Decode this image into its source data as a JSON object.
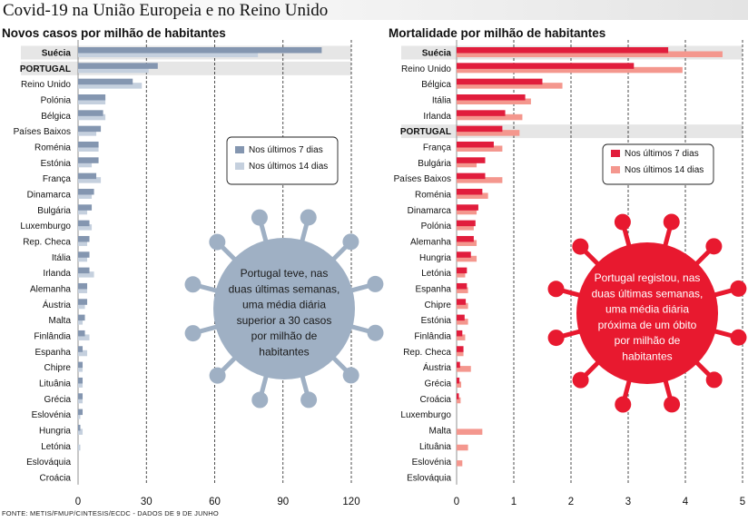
{
  "main_title": "Covid-19 na União Europeia e no Reino Unido",
  "source": "FONTE: METIS/FMUP/CINTESIS/ECDC - DADOS DE 9 DE JUNHO",
  "chart_data": [
    {
      "type": "bar",
      "orientation": "horizontal",
      "title": "Novos casos por milhão de habitantes",
      "categories": [
        "Suécia",
        "PORTUGAL",
        "Reino Unido",
        "Polónia",
        "Bélgica",
        "Países Baixos",
        "Roménia",
        "Estónia",
        "França",
        "Dinamarca",
        "Bulgária",
        "Luxemburgo",
        "Rep. Checa",
        "Itália",
        "Irlanda",
        "Alemanha",
        "Áustria",
        "Malta",
        "Finlândia",
        "Espanha",
        "Chipre",
        "Lituânia",
        "Grécia",
        "Eslovénia",
        "Hungria",
        "Letónia",
        "Eslováquia",
        "Croácia"
      ],
      "highlight": [
        "Suécia",
        "PORTUGAL"
      ],
      "series": [
        {
          "name": "Nos últimos 7 dias",
          "color": "#8496b0",
          "values": [
            107,
            35,
            24,
            12,
            11,
            10,
            9,
            9,
            8,
            7,
            6,
            5,
            5,
            5,
            5,
            4,
            4,
            3,
            3,
            2,
            2,
            2,
            2,
            2,
            1,
            0,
            0,
            0
          ]
        },
        {
          "name": "Nos últimos 14 dias",
          "color": "#c5d0de",
          "values": [
            79,
            31,
            28,
            12,
            12,
            8,
            9,
            6,
            10,
            6,
            4,
            6,
            4,
            4,
            7,
            4,
            3,
            2,
            5,
            4,
            2,
            2,
            2,
            1,
            2,
            1,
            0,
            0
          ]
        }
      ],
      "xlim": [
        0,
        120
      ],
      "xticks": [
        0,
        30,
        60,
        90,
        120
      ],
      "grid": true,
      "legend_position": "right",
      "annotation": [
        "Portugal teve, nas",
        "duas últimas semanas,",
        "uma média diária",
        "superior a 30 casos",
        "por milhão de",
        "habitantes"
      ],
      "annotation_shape_color": "#9fb0c4"
    },
    {
      "type": "bar",
      "orientation": "horizontal",
      "title": "Mortalidade por milhão de habitantes",
      "categories": [
        "Suécia",
        "Reino Unido",
        "Bélgica",
        "Itália",
        "Irlanda",
        "PORTUGAL",
        "França",
        "Bulgária",
        "Países Baixos",
        "Roménia",
        "Dinamarca",
        "Polónia",
        "Alemanha",
        "Hungria",
        "Letónia",
        "Espanha",
        "Chipre",
        "Estónia",
        "Finlândia",
        "Rep. Checa",
        "Áustria",
        "Grécia",
        "Croácia",
        "Luxemburgo",
        "Malta",
        "Lituânia",
        "Eslovénia",
        "Eslováquia"
      ],
      "highlight": [
        "Suécia",
        "PORTUGAL"
      ],
      "series": [
        {
          "name": "Nos últimos 7 dias",
          "color": "#e11d3c",
          "values": [
            3.7,
            3.1,
            1.5,
            1.2,
            0.85,
            0.8,
            0.65,
            0.5,
            0.5,
            0.45,
            0.38,
            0.33,
            0.3,
            0.25,
            0.18,
            0.18,
            0.16,
            0.14,
            0.1,
            0.12,
            0.06,
            0.05,
            0.04,
            0,
            0,
            0,
            0,
            0
          ]
        },
        {
          "name": "Nos últimos 14 dias",
          "color": "#f4978e",
          "values": [
            4.65,
            3.95,
            1.85,
            1.3,
            1.15,
            1.1,
            0.8,
            0.35,
            0.8,
            0.55,
            0.35,
            0.3,
            0.35,
            0.35,
            0.15,
            0.2,
            0.2,
            0.2,
            0.15,
            0.12,
            0.25,
            0.08,
            0.07,
            0,
            0.45,
            0.2,
            0.1,
            0
          ]
        }
      ],
      "xlim": [
        0,
        5
      ],
      "xticks": [
        0,
        1,
        2,
        3,
        4,
        5
      ],
      "grid": true,
      "legend_position": "right",
      "annotation": [
        "Portugal registou, nas",
        "duas últimas semanas,",
        "uma média diária",
        "próxima de um óbito",
        "por milhão de",
        "habitantes"
      ],
      "annotation_shape_color": "#e8192f"
    }
  ]
}
